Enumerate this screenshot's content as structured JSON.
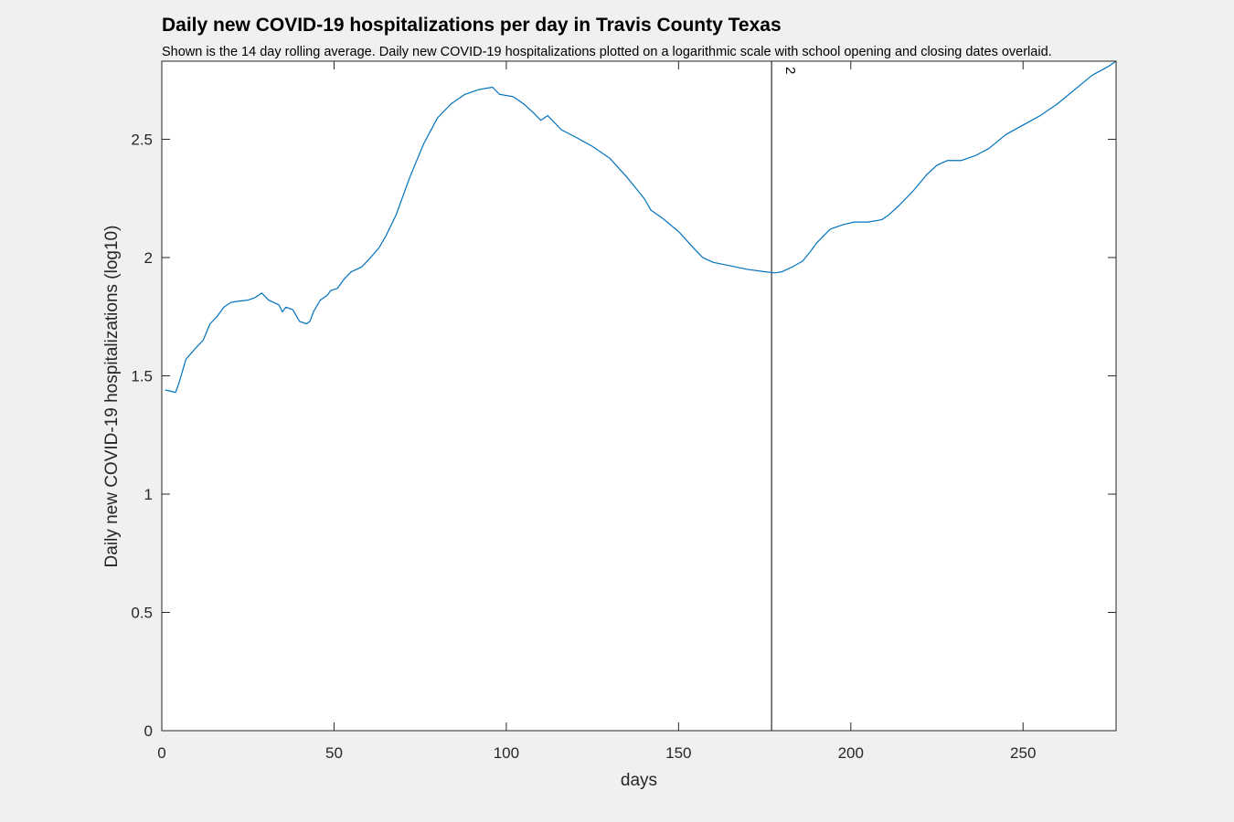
{
  "chart_data": {
    "type": "line",
    "title": "Daily new COVID-19 hospitalizations per day in Travis County Texas",
    "subtitle": "Shown is the 14 day rolling average. Daily new COVID-19 hospitalizations plotted on a logarithmic scale with school opening and closing dates overlaid.",
    "xlabel": "days",
    "ylabel": "Daily new COVID-19 hospitalizations (log10)",
    "xlim": [
      0,
      277
    ],
    "ylim": [
      0,
      2.83
    ],
    "xticks": [
      0,
      50,
      100,
      150,
      200,
      250
    ],
    "xtick_labels": [
      "0",
      "50",
      "100",
      "150",
      "200",
      "250"
    ],
    "yticks": [
      0,
      0.5,
      1,
      1.5,
      2,
      2.5
    ],
    "ytick_labels": [
      "0",
      "0.5",
      "1",
      "1.5",
      "2",
      "2.5"
    ],
    "grid": false,
    "line_color": "#0072bd",
    "series": [
      {
        "x": [
          1,
          4,
          5,
          7,
          10,
          12,
          14,
          16,
          18,
          20,
          22,
          25,
          27,
          29,
          31,
          34,
          35,
          36,
          38,
          40,
          42,
          43,
          44,
          46,
          48,
          49,
          51,
          53,
          55,
          58,
          60,
          63,
          65,
          68,
          72,
          76,
          80,
          84,
          88,
          92,
          96,
          98,
          100,
          102,
          105,
          108,
          110,
          112,
          114,
          116,
          120,
          125,
          130,
          135,
          140,
          142,
          145,
          150,
          155,
          157,
          160,
          165,
          170,
          175,
          178,
          180,
          183,
          186,
          188,
          190,
          194,
          198,
          201,
          205,
          209,
          211,
          214,
          218,
          222,
          225,
          228,
          232,
          236,
          240,
          245,
          250,
          255,
          260,
          265,
          270,
          275,
          277
        ],
        "y": [
          1.44,
          1.43,
          1.47,
          1.57,
          1.62,
          1.65,
          1.72,
          1.75,
          1.79,
          1.81,
          1.815,
          1.82,
          1.83,
          1.85,
          1.82,
          1.8,
          1.77,
          1.79,
          1.78,
          1.73,
          1.72,
          1.73,
          1.77,
          1.82,
          1.84,
          1.86,
          1.87,
          1.91,
          1.94,
          1.96,
          1.99,
          2.04,
          2.09,
          2.18,
          2.34,
          2.48,
          2.59,
          2.65,
          2.69,
          2.71,
          2.72,
          2.69,
          2.685,
          2.68,
          2.65,
          2.61,
          2.58,
          2.6,
          2.57,
          2.54,
          2.51,
          2.47,
          2.42,
          2.34,
          2.25,
          2.2,
          2.17,
          2.11,
          2.03,
          2.0,
          1.98,
          1.965,
          1.95,
          1.94,
          1.935,
          1.94,
          1.96,
          1.985,
          2.02,
          2.06,
          2.12,
          2.14,
          2.15,
          2.15,
          2.16,
          2.18,
          2.22,
          2.28,
          2.35,
          2.39,
          2.41,
          2.41,
          2.43,
          2.46,
          2.52,
          2.56,
          2.6,
          2.65,
          2.71,
          2.77,
          2.81,
          2.83
        ]
      }
    ],
    "annotations": [
      {
        "x": 177,
        "label": "2",
        "type": "vline"
      }
    ]
  }
}
